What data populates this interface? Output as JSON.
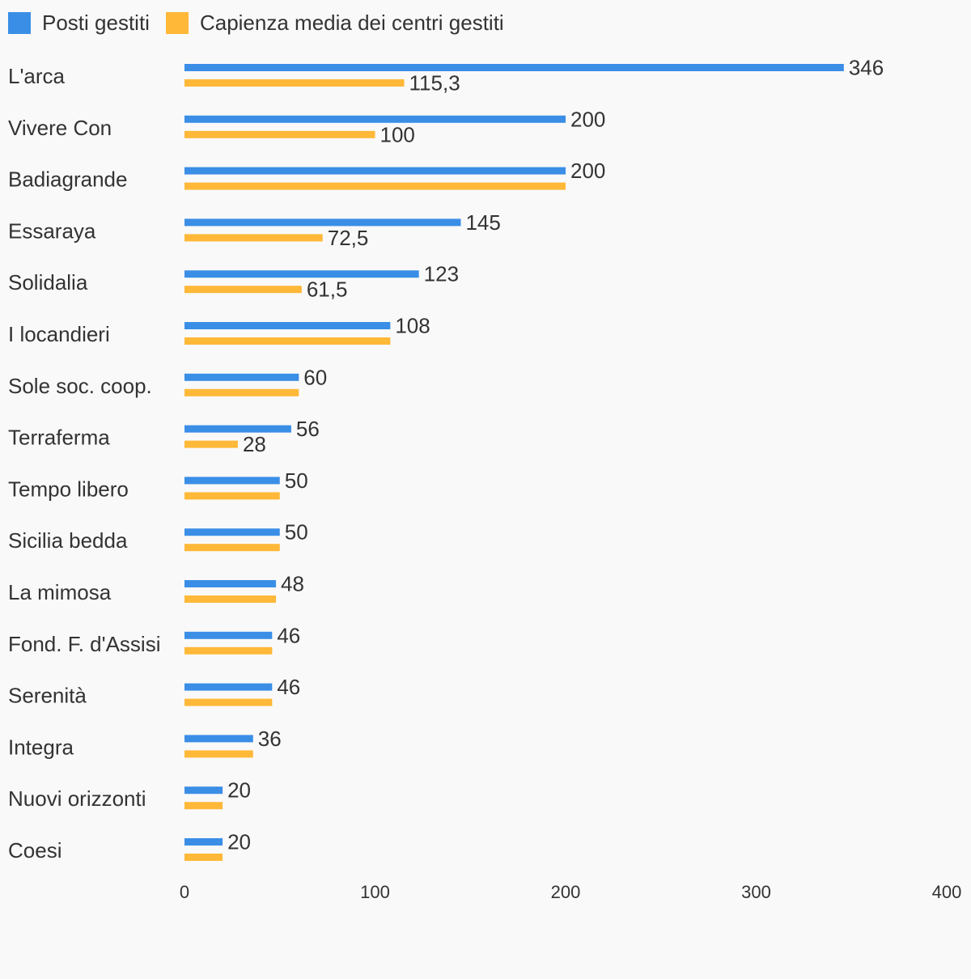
{
  "chart_data": {
    "type": "bar",
    "orientation": "horizontal",
    "categories": [
      "L'arca",
      "Vivere Con",
      "Badiagrande",
      "Essaraya",
      "Solidalia",
      "I locandieri",
      "Sole soc. coop.",
      "Terraferma",
      "Tempo libero",
      "Sicilia bedda",
      "La mimosa",
      "Fond. F. d'Assisi",
      "Serenità",
      "Integra",
      "Nuovi orizzonti",
      "Coesi"
    ],
    "series": [
      {
        "name": "Posti gestiti",
        "color": "#3a8ee6",
        "values": [
          346,
          200,
          200,
          145,
          123,
          108,
          60,
          56,
          50,
          50,
          48,
          46,
          46,
          36,
          20,
          20
        ],
        "labels": [
          "346",
          "200",
          "200",
          "145",
          "123",
          "108",
          "60",
          "56",
          "50",
          "50",
          "48",
          "46",
          "46",
          "36",
          "20",
          "20"
        ]
      },
      {
        "name": "Capienza media dei centri gestiti",
        "color": "#ffb838",
        "values": [
          115.3,
          100,
          200,
          72.5,
          61.5,
          108,
          60,
          28,
          50,
          50,
          48,
          46,
          46,
          36,
          20,
          20
        ],
        "labels": [
          "115,3",
          "100",
          "",
          "72,5",
          "61,5",
          "",
          "",
          "28",
          "",
          "",
          "",
          "",
          "",
          "",
          "",
          ""
        ]
      }
    ],
    "xlim": [
      0,
      400
    ],
    "xticks": [
      0,
      100,
      200,
      300,
      400
    ],
    "xtick_labels": [
      "0",
      "100",
      "200",
      "300",
      "400"
    ],
    "grid": false,
    "legend_position": "top-left"
  }
}
